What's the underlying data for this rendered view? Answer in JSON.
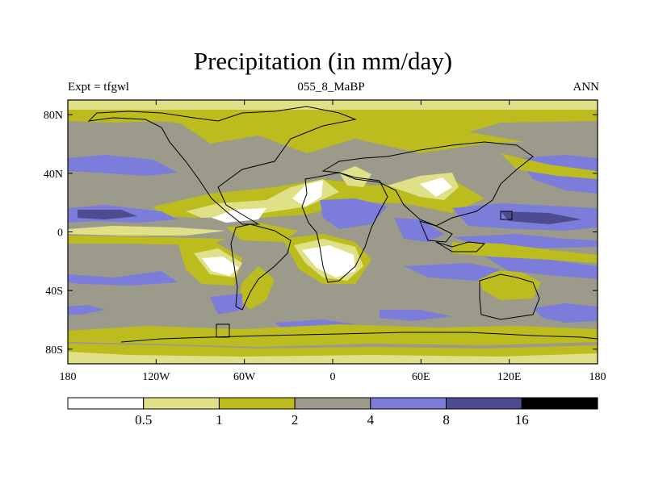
{
  "title": "Precipitation (in mm/day)",
  "subtitle": {
    "left": "Expt = tfgwl",
    "center": "055_8_MaBP",
    "right": "ANN"
  },
  "map": {
    "projection": "cylindrical-equidistant",
    "lon_range": [
      -180,
      180
    ],
    "lat_range": [
      -90,
      90
    ],
    "lat_ticks": [
      {
        "value": 80,
        "label": "80N"
      },
      {
        "value": 40,
        "label": "40N"
      },
      {
        "value": 0,
        "label": "0"
      },
      {
        "value": -40,
        "label": "40S"
      },
      {
        "value": -80,
        "label": "80S"
      }
    ],
    "lon_ticks": [
      {
        "value": -180,
        "label": "180"
      },
      {
        "value": -120,
        "label": "120W"
      },
      {
        "value": -60,
        "label": "60W"
      },
      {
        "value": 0,
        "label": "0"
      },
      {
        "value": 60,
        "label": "60E"
      },
      {
        "value": 120,
        "label": "120E"
      },
      {
        "value": 180,
        "label": "180"
      }
    ]
  },
  "colorbar": {
    "levels": [
      {
        "label": "0.5"
      },
      {
        "label": "1"
      },
      {
        "label": "2"
      },
      {
        "label": "4"
      },
      {
        "label": "8"
      },
      {
        "label": "16"
      }
    ],
    "colors": [
      "#ffffff",
      "#e0e088",
      "#bcbc1f",
      "#9b9a8b",
      "#7c7cda",
      "#4c4c8e",
      "#000000"
    ]
  }
}
